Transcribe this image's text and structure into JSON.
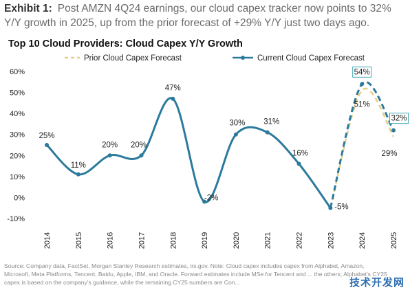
{
  "exhibit": {
    "label": "Exhibit 1:",
    "text": "Post AMZN 4Q24 earnings, our cloud capex tracker now points to 32% Y/Y growth in 2025, up from the prior forecast of +29% Y/Y just two days ago."
  },
  "source_note": "Source: Company data, FactSet, Morgan Stanley Research estimates, irs.gov. Note: Cloud capex includes capex from Alphabet, Amazon, Microsoft, Meta Platforms, Tencent, Baidu, Apple, IBM, and Oracle. Forward estimates include MSe for Tencent and ... the others; Alphabet's CY25 capex is based on the company's guidance, while the remaining CY25 numbers are Con...",
  "watermark": "技术开发网",
  "colors": {
    "current": "#2b7a9c",
    "prior": "#e3cf86",
    "highlight_border": "#3aa8b8"
  },
  "chart_data": {
    "type": "line",
    "title": "Top 10 Cloud Providers: Cloud Capex Y/Y Growth",
    "x": [
      "2014",
      "2015",
      "2016",
      "2017",
      "2018",
      "2019",
      "2020",
      "2021",
      "2022",
      "2023",
      "2024",
      "2025"
    ],
    "ylim": [
      -10,
      60
    ],
    "yticks": [
      "-10%",
      "0%",
      "10%",
      "20%",
      "30%",
      "40%",
      "50%",
      "60%"
    ],
    "ytick_values": [
      -10,
      0,
      10,
      20,
      30,
      40,
      50,
      60
    ],
    "grid": false,
    "legend_position": "top",
    "series": [
      {
        "name": "Prior Cloud Capex Forecast",
        "style": "dashed",
        "values": [
          null,
          null,
          null,
          null,
          null,
          null,
          null,
          null,
          null,
          -5,
          51,
          29
        ],
        "labels": [
          "",
          "",
          "",
          "",
          "",
          "",
          "",
          "",
          "",
          "",
          "51%",
          "29%"
        ]
      },
      {
        "name": "Current Cloud Capex Forecast",
        "style": "solid-then-dashed",
        "dashed_from_index": 9,
        "values": [
          25,
          11,
          20,
          20,
          47,
          -2,
          30,
          31,
          16,
          -5,
          54,
          32
        ],
        "labels": [
          "25%",
          "11%",
          "20%",
          "20%",
          "47%",
          "-2%",
          "30%",
          "31%",
          "16%",
          "-5%",
          "54%",
          "32%"
        ]
      }
    ]
  }
}
